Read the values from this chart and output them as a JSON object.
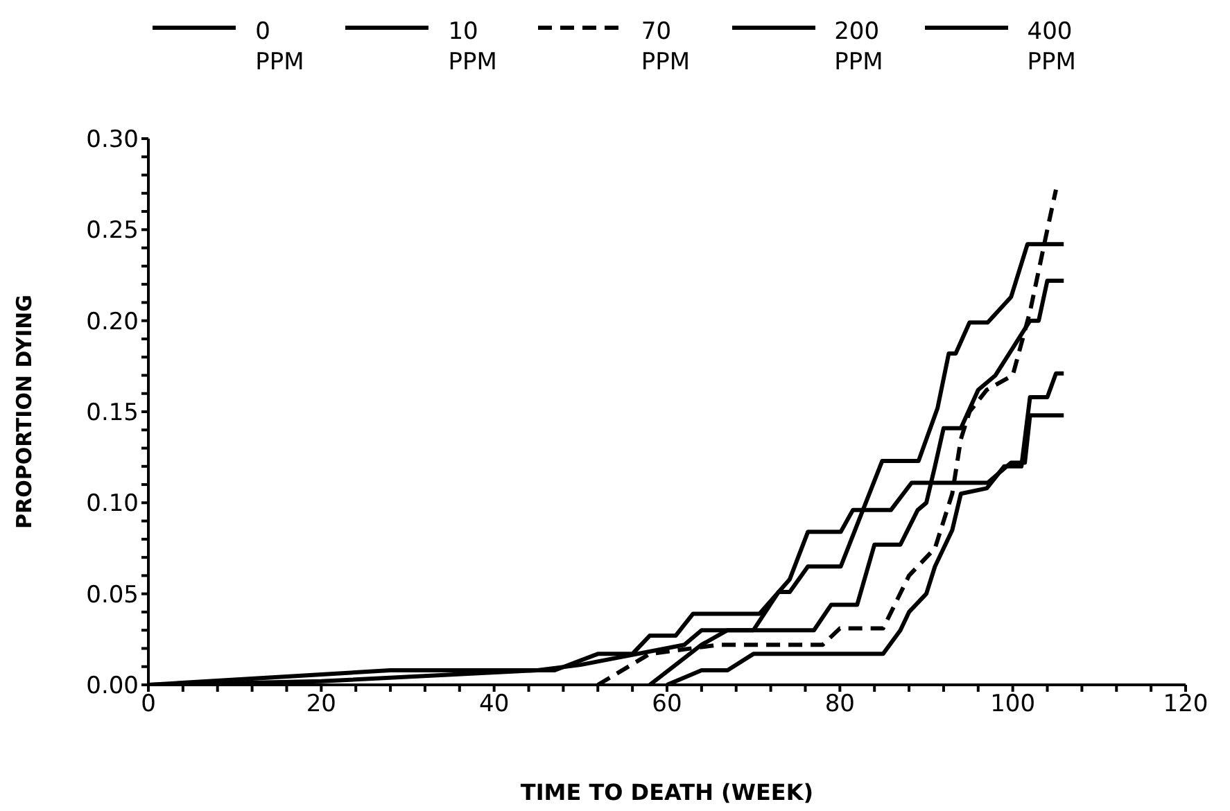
{
  "chart_data": {
    "type": "line",
    "xlabel": "TIME TO DEATH (WEEK)",
    "ylabel": "PROPORTION DYING",
    "legend": "top",
    "line_style": "solid",
    "xlim": [
      0,
      120
    ],
    "xticks": [
      0,
      {
        "value": 4,
        "label": null
      },
      {
        "value": 8,
        "label": null
      },
      {
        "value": 12,
        "label": null
      },
      {
        "value": 16,
        "label": null
      },
      20,
      {
        "value": 24,
        "label": null
      },
      {
        "value": 28,
        "label": null
      },
      {
        "value": 32,
        "label": null
      },
      {
        "value": 36,
        "label": null
      },
      40,
      {
        "value": 44,
        "label": null
      },
      {
        "value": 48,
        "label": null
      },
      {
        "value": 52,
        "label": null
      },
      {
        "value": 56,
        "label": null
      },
      60,
      {
        "value": 64,
        "label": null
      },
      {
        "value": 68,
        "label": null
      },
      {
        "value": 72,
        "label": null
      },
      {
        "value": 76,
        "label": null
      },
      80,
      {
        "value": 84,
        "label": null
      },
      {
        "value": 88,
        "label": null
      },
      {
        "value": 92,
        "label": null
      },
      {
        "value": 96,
        "label": null
      },
      100,
      {
        "value": 104,
        "label": null
      },
      {
        "value": 108,
        "label": null
      },
      {
        "value": 112,
        "label": null
      },
      {
        "value": 116,
        "label": null
      },
      120
    ],
    "ylim": [
      0,
      0.3
    ],
    "yticks": [
      {
        "value": 0,
        "label": "0.00"
      },
      {
        "value": 0.01,
        "label": null
      },
      {
        "value": 0.02,
        "label": null
      },
      {
        "value": 0.03,
        "label": null
      },
      {
        "value": 0.04,
        "label": null
      },
      {
        "value": 0.05,
        "label": "0.05"
      },
      {
        "value": 0.06,
        "label": null
      },
      {
        "value": 0.07,
        "label": null
      },
      {
        "value": 0.08,
        "label": null
      },
      {
        "value": 0.09,
        "label": null
      },
      {
        "value": 0.1,
        "label": "0.10"
      },
      {
        "value": 0.11,
        "label": null
      },
      {
        "value": 0.12,
        "label": null
      },
      {
        "value": 0.13,
        "label": null
      },
      {
        "value": 0.14,
        "label": null
      },
      {
        "value": 0.15,
        "label": "0.15"
      },
      {
        "value": 0.16,
        "label": null
      },
      {
        "value": 0.17,
        "label": null
      },
      {
        "value": 0.18,
        "label": null
      },
      {
        "value": 0.19,
        "label": null
      },
      {
        "value": 0.2,
        "label": "0.20"
      },
      {
        "value": 0.21,
        "label": null
      },
      {
        "value": 0.22,
        "label": null
      },
      {
        "value": 0.23,
        "label": null
      },
      {
        "value": 0.24,
        "label": null
      },
      {
        "value": 0.25,
        "label": "0.25"
      },
      {
        "value": 0.26,
        "label": null
      },
      {
        "value": 0.27,
        "label": null
      },
      {
        "value": 0.28,
        "label": null
      },
      {
        "value": 0.29,
        "label": null
      },
      {
        "value": 0.3,
        "label": "0.30"
      }
    ],
    "series": [
      {
        "name": "0 PPM",
        "color": "#000000",
        "x": [
          0,
          28,
          47,
          52,
          56,
          58,
          61,
          63,
          70.7,
          74.2,
          76.3,
          80.1,
          81.5,
          85.9,
          88.3,
          97.1,
          99.8,
          101.4,
          102,
          105.9
        ],
        "values": [
          0,
          0.008,
          0.008,
          0.017,
          0.017,
          0.027,
          0.027,
          0.039,
          0.039,
          0.058,
          0.084,
          0.084,
          0.096,
          0.096,
          0.111,
          0.111,
          0.122,
          0.122,
          0.148,
          0.148
        ]
      },
      {
        "name": "10 PPM",
        "color": "#000000",
        "x": [
          0,
          20,
          45,
          50,
          62,
          64,
          70,
          72.9,
          74.2,
          76.3,
          80.1,
          84.9,
          89.1,
          91.3,
          92.6,
          93.4,
          95,
          97.1,
          99.8,
          101.7,
          105.9
        ],
        "values": [
          0,
          0.002,
          0.008,
          0.011,
          0.022,
          0.03,
          0.03,
          0.051,
          0.051,
          0.065,
          0.065,
          0.123,
          0.123,
          0.152,
          0.182,
          0.182,
          0.199,
          0.199,
          0.213,
          0.242,
          0.242
        ]
      },
      {
        "name": "70 PPM",
        "color": "#000000",
        "line_style": "dashed",
        "x": [
          52,
          58,
          66,
          78,
          80,
          85,
          88,
          91,
          92,
          93,
          94,
          95,
          97,
          100,
          102,
          104,
          105
        ],
        "values": [
          0,
          0.017,
          0.022,
          0.022,
          0.031,
          0.031,
          0.06,
          0.075,
          0.09,
          0.105,
          0.135,
          0.15,
          0.162,
          0.17,
          0.205,
          0.25,
          0.272
        ]
      },
      {
        "name": "200 PPM",
        "color": "#000000",
        "x": [
          58,
          61,
          64,
          67,
          77,
          79,
          82,
          84,
          87,
          89,
          90,
          91,
          92,
          94,
          96,
          98,
          100,
          102,
          103,
          104,
          105.9
        ],
        "values": [
          0,
          0.011,
          0.022,
          0.03,
          0.03,
          0.044,
          0.044,
          0.077,
          0.077,
          0.096,
          0.1,
          0.12,
          0.141,
          0.141,
          0.162,
          0.17,
          0.185,
          0.2,
          0.2,
          0.222,
          0.222
        ]
      },
      {
        "name": "400 PPM",
        "color": "#000000",
        "x": [
          60,
          64,
          67,
          70,
          85,
          87,
          88,
          90,
          91,
          93,
          94,
          97,
          99,
          101,
          102,
          104,
          105,
          105.9
        ],
        "values": [
          0,
          0.008,
          0.008,
          0.017,
          0.017,
          0.03,
          0.04,
          0.05,
          0.065,
          0.085,
          0.105,
          0.108,
          0.12,
          0.12,
          0.158,
          0.158,
          0.171,
          0.171
        ]
      }
    ]
  }
}
